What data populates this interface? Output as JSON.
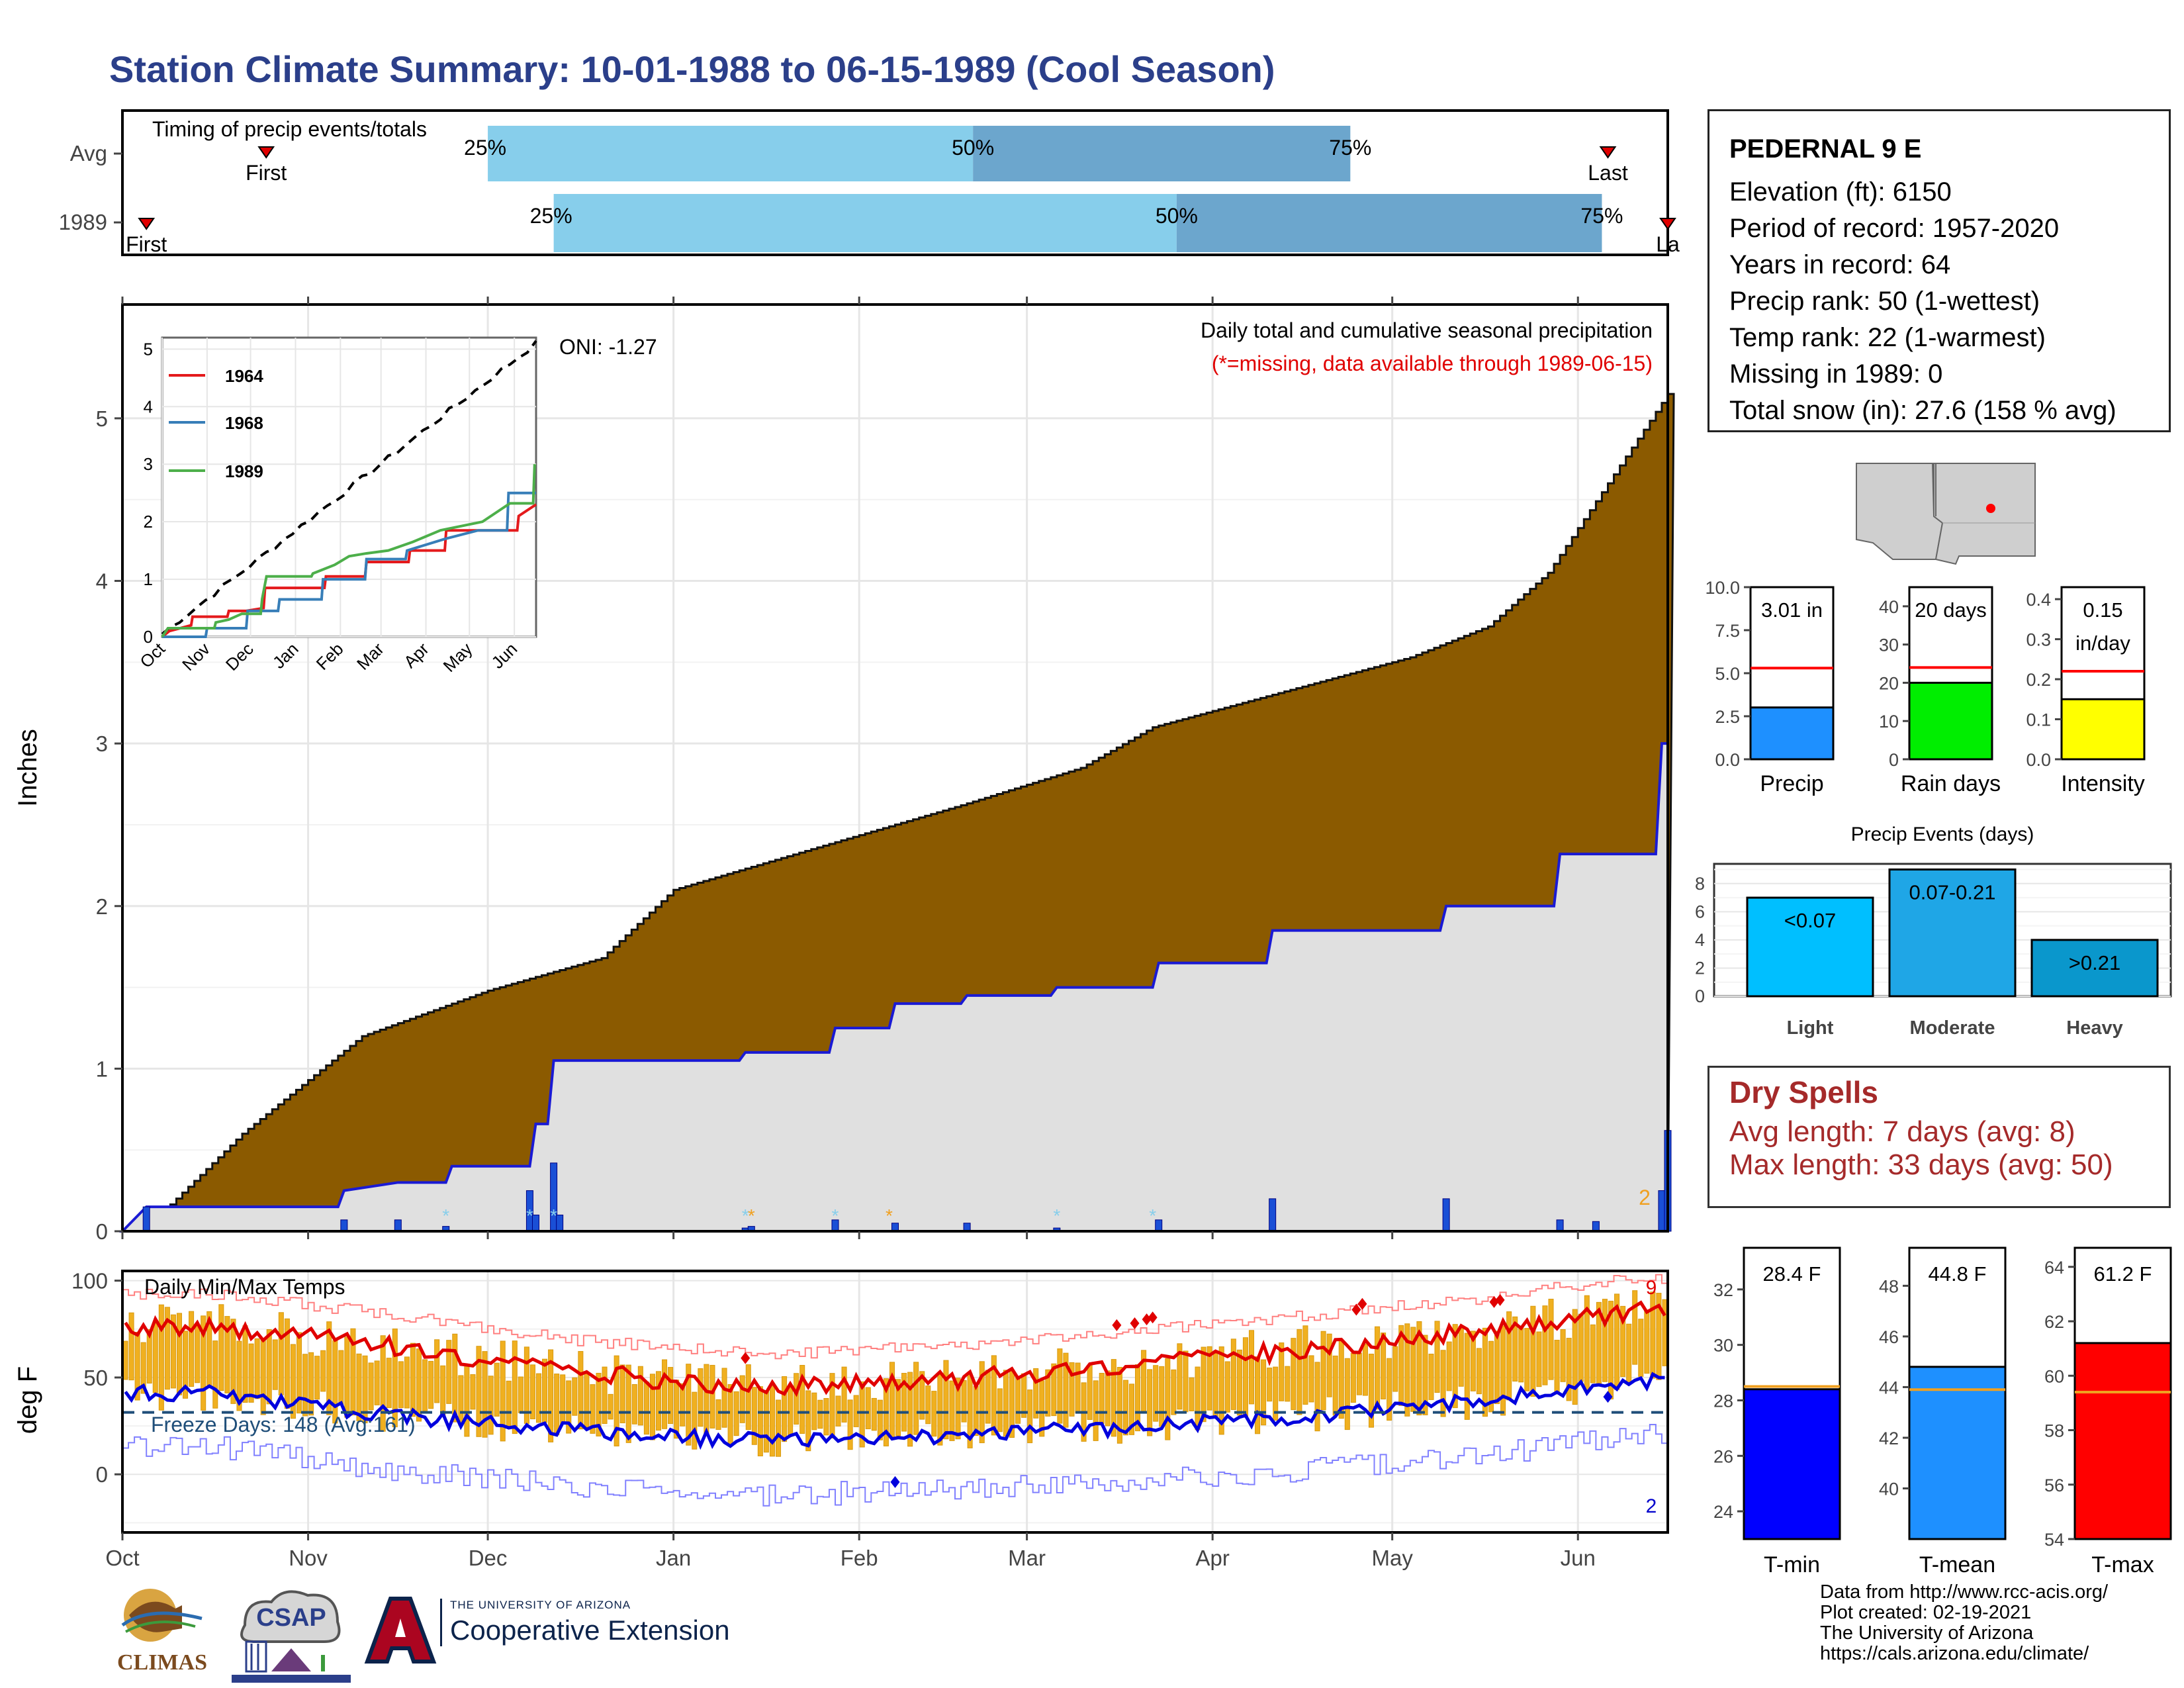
{
  "page_title": "Station Climate Summary: 10-01-1988 to 06-15-1989 (Cool Season)",
  "timing": {
    "title": "Timing of precip events/totals",
    "rows": [
      {
        "label": "Avg",
        "first_label": "First",
        "last_label": "Last",
        "first_doy": 24,
        "last_doy": 248,
        "q25_doy": 61,
        "q50_doy": 142,
        "q75_doy": 205,
        "p25": "25%",
        "p50": "50%",
        "p75": "75%"
      },
      {
        "label": "1989",
        "first_label": "First",
        "last_label": "La",
        "first_doy": 4,
        "last_doy": 258,
        "q25_doy": 72,
        "q50_doy": 176,
        "q75_doy": 247,
        "p25": "25%",
        "p50": "50%",
        "p75": "75%"
      }
    ]
  },
  "station": {
    "name": "PEDERNAL 9 E",
    "elevation": "Elevation (ft): 6150",
    "period": "Period of record: 1957-2020",
    "years": "Years in record: 64",
    "precip_rank": "Precip rank: 50 (1-wettest)",
    "temp_rank": "Temp rank: 22 (1-warmest)",
    "missing": "Missing in 1989: 0",
    "snow": "Total snow (in): 27.6 (158 % avg)"
  },
  "main_chart": {
    "ylabel": "Inches",
    "oni": "ONI: -1.27",
    "legend_title": "Daily total and cumulative seasonal precipitation",
    "legend_note": "(*=missing, data available through 1989-06-15)",
    "count_label": "2",
    "colors": {
      "avg_fill": "#8b5a00",
      "obs_fill": "#e0e0e0",
      "obs_line": "#1a1ad4",
      "bar": "#1a4fd6"
    }
  },
  "inset": {
    "series": [
      {
        "name": "1964",
        "color": "#e41a1c"
      },
      {
        "name": "1968",
        "color": "#377eb8"
      },
      {
        "name": "1989",
        "color": "#4daf4a"
      }
    ],
    "yticks": [
      "0",
      "1",
      "2",
      "3",
      "4",
      "5"
    ],
    "xticks": [
      "Oct",
      "Nov",
      "Dec",
      "Jan",
      "Feb",
      "Mar",
      "Apr",
      "May",
      "Jun"
    ]
  },
  "temp_chart": {
    "title": "Daily Min/Max Temps",
    "ylabel": "deg F",
    "freeze": "Freeze Days: 148 (Avg:161)",
    "max_count": "9",
    "min_count": "2",
    "yticks": [
      "0",
      "50",
      "100"
    ]
  },
  "months": [
    "Oct",
    "Nov",
    "Dec",
    "Jan",
    "Feb",
    "Mar",
    "Apr",
    "May",
    "Jun"
  ],
  "main_yticks": [
    "0",
    "1",
    "2",
    "3",
    "4",
    "5"
  ],
  "small_bars": [
    {
      "label": "Precip",
      "value_text": "3.01 in",
      "value": 3.01,
      "avg": 5.3,
      "ymax": 10.0,
      "ticks": [
        "0.0",
        "2.5",
        "5.0",
        "7.5",
        "10.0"
      ],
      "color": "#1e90ff"
    },
    {
      "label": "Rain days",
      "value_text": "20 days",
      "value": 20,
      "avg": 24,
      "ymax": 45,
      "ticks": [
        "0",
        "10",
        "20",
        "30",
        "40"
      ],
      "color": "#00ee00"
    },
    {
      "label": "Intensity",
      "value_text": "0.15",
      "value_text2": "in/day",
      "value": 0.15,
      "avg": 0.22,
      "ymax": 0.43,
      "ticks": [
        "0.0",
        "0.1",
        "0.2",
        "0.3",
        "0.4"
      ],
      "color": "#ffff00"
    }
  ],
  "precip_events": {
    "title": "Precip Events (days)",
    "categories": [
      "Light",
      "Moderate",
      "Heavy"
    ],
    "bar_labels": [
      "<0.07",
      "0.07-0.21",
      ">0.21"
    ],
    "values": [
      7,
      9,
      4
    ],
    "yticks": [
      "0",
      "2",
      "4",
      "6",
      "8"
    ],
    "colors": [
      "#00bfff",
      "#1fa6e6",
      "#0a97cc"
    ]
  },
  "dry_spells": {
    "title": "Dry Spells",
    "avg": "Avg length: 7 days (avg: 8)",
    "max": "Max length: 33 days (avg: 50)"
  },
  "temp_bars": [
    {
      "label": "T-min",
      "value_text": "28.4 F",
      "value": 28.4,
      "avg": 28.5,
      "ymin": 23,
      "ymax": 33.5,
      "ticks": [
        "24",
        "26",
        "28",
        "30",
        "32"
      ],
      "color": "#0000ff"
    },
    {
      "label": "T-mean",
      "value_text": "44.8 F",
      "value": 44.8,
      "avg": 43.9,
      "ymin": 38,
      "ymax": 49.5,
      "ticks": [
        "40",
        "42",
        "44",
        "46",
        "48"
      ],
      "color": "#1e90ff"
    },
    {
      "label": "T-max",
      "value_text": "61.2 F",
      "value": 61.2,
      "avg": 59.4,
      "ymin": 54,
      "ymax": 64.7,
      "ticks": [
        "54",
        "56",
        "58",
        "60",
        "62",
        "64"
      ],
      "color": "#ff0000"
    }
  ],
  "logos": {
    "climas": "CLIMAS",
    "csap": "CSAP",
    "coop_small": "THE UNIVERSITY OF ARIZONA",
    "coop": "Cooperative Extension"
  },
  "credits": [
    "Data from http://www.rcc-acis.org/",
    "Plot created: 02-19-2021",
    "The University of Arizona",
    "https://cals.arizona.edu/climate/"
  ],
  "chart_data": [
    {
      "type": "area",
      "title": "Daily total and cumulative seasonal precipitation",
      "ylabel": "Inches",
      "ylim": [
        0,
        5.7
      ],
      "x": [
        "Oct",
        "Nov",
        "Dec",
        "Jan",
        "Feb",
        "Mar",
        "Apr",
        "May",
        "Jun"
      ],
      "series": [
        {
          "name": "average cumulative",
          "values": [
            0.0,
            1.2,
            1.65,
            2.1,
            2.45,
            2.82,
            3.3,
            3.6,
            4.9
          ]
        },
        {
          "name": "1989 cumulative",
          "values": [
            0.15,
            0.3,
            0.4,
            1.05,
            1.35,
            1.6,
            1.85,
            2.0,
            2.3
          ]
        }
      ]
    },
    {
      "type": "line",
      "title": "Daily Min/Max Temps",
      "ylabel": "deg F",
      "ylim": [
        -30,
        105
      ],
      "x": [
        "Oct",
        "Nov",
        "Dec",
        "Jan",
        "Feb",
        "Mar",
        "Apr",
        "May",
        "Jun"
      ],
      "series": [
        {
          "name": "avg max",
          "values": [
            76,
            65,
            52,
            45,
            49,
            56,
            65,
            74,
            84
          ]
        },
        {
          "name": "avg min",
          "values": [
            42,
            30,
            22,
            17,
            20,
            24,
            30,
            38,
            48
          ]
        }
      ]
    },
    {
      "type": "bar",
      "title": "Precip Events (days)",
      "categories": [
        "Light",
        "Moderate",
        "Heavy"
      ],
      "values": [
        7,
        9,
        4
      ]
    }
  ]
}
